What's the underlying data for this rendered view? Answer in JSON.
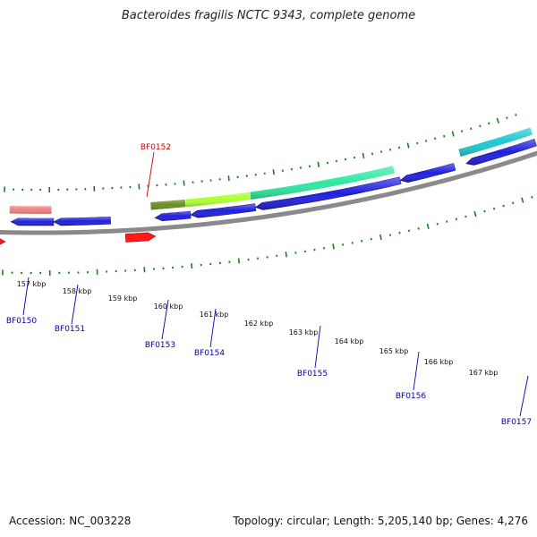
{
  "title": "Bacteroides fragilis NCTC 9343, complete genome",
  "footer": {
    "accession": "Accession: NC_003228",
    "summary": "Topology: circular; Length: 5,205,140 bp; Genes: 4,276"
  },
  "colors": {
    "backbone": "#8a8a8a",
    "tick": "#1a7f1a",
    "forward_label": "#cc0000",
    "reverse_label": "#0000aa"
  },
  "kbp_ticks": [
    "157 kbp",
    "158 kbp",
    "159 kbp",
    "160 kbp",
    "161 kbp",
    "162 kbp",
    "163 kbp",
    "164 kbp",
    "165 kbp",
    "166 kbp",
    "167 kbp"
  ],
  "genes": [
    {
      "id": "BF0150",
      "strand": "reverse",
      "color": "#2020e0"
    },
    {
      "id": "BF0151",
      "strand": "reverse",
      "color": "#2020e0"
    },
    {
      "id": "BF0152",
      "strand": "forward",
      "color": "#ff1a1a"
    },
    {
      "id": "BF0153",
      "strand": "reverse",
      "color": "#2020e0"
    },
    {
      "id": "BF0154",
      "strand": "reverse",
      "color": "#2020e0"
    },
    {
      "id": "BF0155",
      "strand": "reverse",
      "color": "#2020e0"
    },
    {
      "id": "BF0156",
      "strand": "reverse",
      "color": "#2020e0"
    },
    {
      "id": "BF0157",
      "strand": "reverse",
      "color": "#2020e0"
    }
  ],
  "features": [
    {
      "id": "BF0150",
      "color": "#f08080"
    },
    {
      "id": "BF0153",
      "color": "#6b8e23"
    },
    {
      "id": "BF0154",
      "color": "#adff2f"
    },
    {
      "id": "BF0155",
      "color": "#2ee8a0"
    },
    {
      "id": "BF0157",
      "color": "#20c8d0"
    }
  ]
}
